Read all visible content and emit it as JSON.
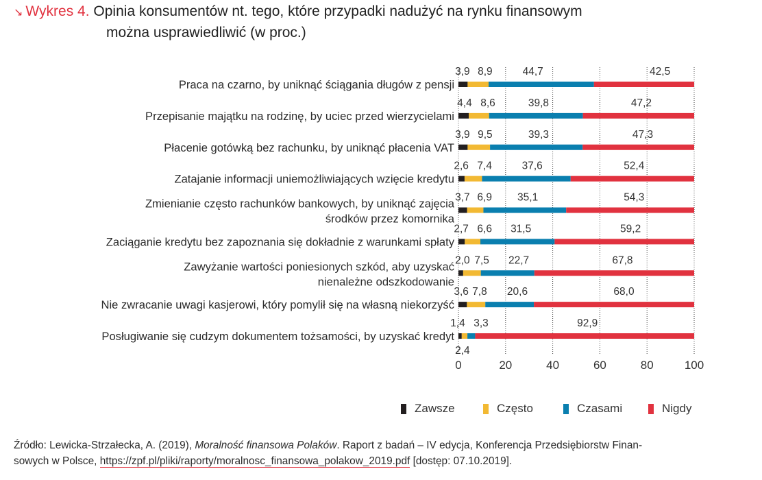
{
  "title": {
    "arrow_icon": "↘",
    "figure_label": "Wykres 4.",
    "line1": "Opinia konsumentów nt. tego, które przypadki nadużyć na rynku finansowym",
    "line2": "można usprawiedliwić (w proc.)"
  },
  "legend": {
    "items": [
      {
        "label": "Zawsze",
        "color": "#231f20"
      },
      {
        "label": "Często",
        "color": "#f2b933"
      },
      {
        "label": "Czasami",
        "color": "#0a7faf"
      },
      {
        "label": "Nigdy",
        "color": "#e1323f"
      }
    ]
  },
  "source": {
    "prefix": "Źródło: Lewicka-Strzałecka, A. (2019), ",
    "title": "Moralność finansowa Polaków",
    "line1_rest": ". Raport z badań – IV edycja, Konferencja Przedsiębiorstw Finan-",
    "line2_prefix": "sowych w Polsce, ",
    "url": "https://zpf.pl/pliki/raporty/moralnosc_finansowa_polakow_2019.pdf",
    "suffix": " [dostęp: 07.10.2019]."
  },
  "chart_data": {
    "type": "bar",
    "orientation": "horizontal",
    "stacked": true,
    "title": "Wykres 4. Opinia konsumentów nt. tego, które przypadki nadużyć na rynku finansowym można usprawiedliwić (w proc.)",
    "xlabel": "",
    "ylabel": "",
    "xlim": [
      0,
      100
    ],
    "xticks": [
      0,
      20,
      40,
      60,
      80,
      100
    ],
    "grid": "vertical dotted",
    "legend_position": "bottom-right",
    "decimal_separator": ",",
    "categories": [
      "Praca na czarno, by uniknąć ściągania długów z pensji",
      "Przepisanie majątku na rodzinę, by uciec przed wierzycielami",
      "Płacenie gotówką bez rachunku, by uniknąć płacenia VAT",
      "Zatajanie informacji uniemożliwiających wzięcie kredytu",
      "Zmienianie często rachunków bankowych, by uniknąć zajęcia\nśrodków przez komornika",
      "Zaciąganie kredytu bez zapoznania się dokładnie z warunkami spłaty",
      "Zawyżanie wartości poniesionych szkód, aby uzyskać\nnienależne odszkodowanie",
      "Nie zwracanie uwagi kasjerowi, który pomylił się na własną niekorzyść",
      "Posługiwanie się cudzym dokumentem tożsamości, by uzyskać kredyt"
    ],
    "series": [
      {
        "name": "Zawsze",
        "color": "#231f20",
        "values": [
          3.9,
          4.4,
          3.9,
          2.6,
          3.7,
          2.7,
          2.0,
          3.6,
          1.4
        ]
      },
      {
        "name": "Często",
        "color": "#f2b933",
        "values": [
          8.9,
          8.6,
          9.5,
          7.4,
          6.9,
          6.6,
          7.5,
          7.8,
          2.4
        ]
      },
      {
        "name": "Czasami",
        "color": "#0a7faf",
        "values": [
          44.7,
          39.8,
          39.3,
          37.6,
          35.1,
          31.5,
          22.7,
          20.6,
          3.3
        ]
      },
      {
        "name": "Nigdy",
        "color": "#e1323f",
        "values": [
          42.5,
          47.2,
          47.3,
          52.4,
          54.3,
          59.2,
          67.8,
          68.0,
          92.9
        ]
      }
    ]
  }
}
